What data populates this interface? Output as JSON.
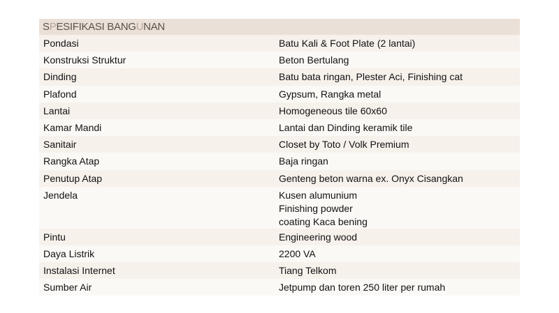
{
  "header": {
    "title_parts": [
      "S",
      "P",
      "ESIFIKASI BANG",
      "U",
      "NAN"
    ]
  },
  "rows": [
    {
      "label": "Pondasi",
      "value": "Batu Kali & Foot Plate (2 lantai)"
    },
    {
      "label": "Konstruksi Struktur",
      "value": "Beton Bertulang"
    },
    {
      "label": "Dinding",
      "value": "Batu bata ringan, Plester Aci, Finishing cat"
    },
    {
      "label": "Plafond",
      "value": "Gypsum, Rangka metal"
    },
    {
      "label": "Lantai",
      "value": "Homogeneous tile 60x60"
    },
    {
      "label": "Kamar Mandi",
      "value": "Lantai dan Dinding keramik tile"
    },
    {
      "label": "Sanitair",
      "value": "Closet by Toto / Volk Premium"
    },
    {
      "label": "Rangka Atap",
      "value": "Baja ringan"
    },
    {
      "label": "Penutup Atap",
      "value": "Genteng beton warna ex. Onyx Cisangkan"
    },
    {
      "label": "Jendela",
      "value": "Kusen alumunium\nFinishing powder\ncoating  Kaca bening"
    },
    {
      "label": "Pintu",
      "value": "Engineering wood"
    },
    {
      "label": "Daya Listrik",
      "value": "2200 VA"
    },
    {
      "label": "Instalasi Internet",
      "value": "Tiang Telkom"
    },
    {
      "label": "Sumber Air",
      "value": "Jetpump dan toren 250 liter per rumah"
    }
  ]
}
